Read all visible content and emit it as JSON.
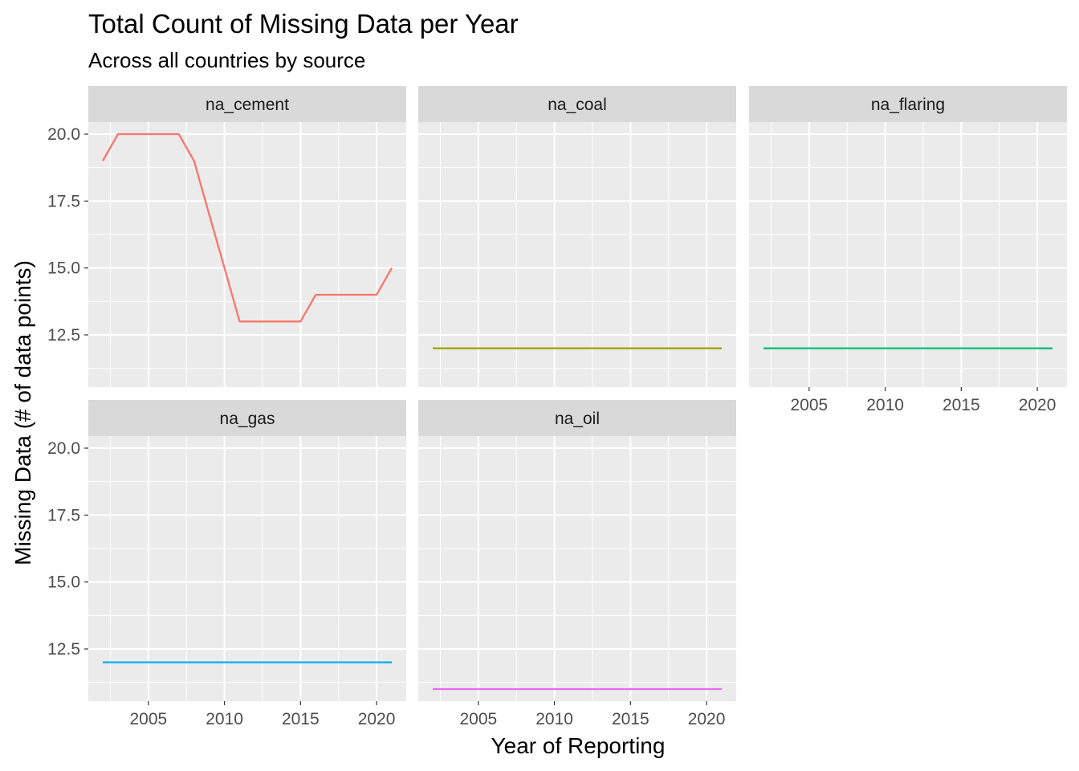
{
  "chart_data": {
    "type": "line",
    "title": "Total Count of Missing Data per Year",
    "subtitle": "Across all countries by source",
    "xlabel": "Year of Reporting",
    "ylabel": "Missing Data (# of data points)",
    "xlim": [
      2001.05,
      2021.95
    ],
    "ylim": [
      10.55,
      20.45
    ],
    "x_ticks": [
      2005,
      2010,
      2015,
      2020
    ],
    "y_ticks": [
      12.5,
      15.0,
      17.5,
      20.0
    ],
    "y_tick_labels": [
      "12.5",
      "15.0",
      "17.5",
      "20.0"
    ],
    "grid": true,
    "legend": "none",
    "layout": {
      "ncol": 3,
      "nrow": 2
    },
    "panels": [
      {
        "name": "na_cement",
        "color": "#F8766D",
        "x": [
          2002,
          2003,
          2004,
          2005,
          2006,
          2007,
          2008,
          2009,
          2010,
          2011,
          2012,
          2013,
          2014,
          2015,
          2016,
          2017,
          2018,
          2019,
          2020,
          2021
        ],
        "y": [
          19,
          20,
          20,
          20,
          20,
          20,
          19,
          17,
          15,
          13,
          13,
          13,
          13,
          13,
          14,
          14,
          14,
          14,
          14,
          15
        ]
      },
      {
        "name": "na_coal",
        "color": "#A3A500",
        "x": [
          2002,
          2021
        ],
        "y": [
          12,
          12
        ]
      },
      {
        "name": "na_flaring",
        "color": "#00BF7D",
        "x": [
          2002,
          2021
        ],
        "y": [
          12,
          12
        ]
      },
      {
        "name": "na_gas",
        "color": "#00B0F6",
        "x": [
          2002,
          2021
        ],
        "y": [
          12,
          12
        ]
      },
      {
        "name": "na_oil",
        "color": "#E76BF3",
        "x": [
          2002,
          2021
        ],
        "y": [
          11,
          11
        ]
      }
    ]
  }
}
